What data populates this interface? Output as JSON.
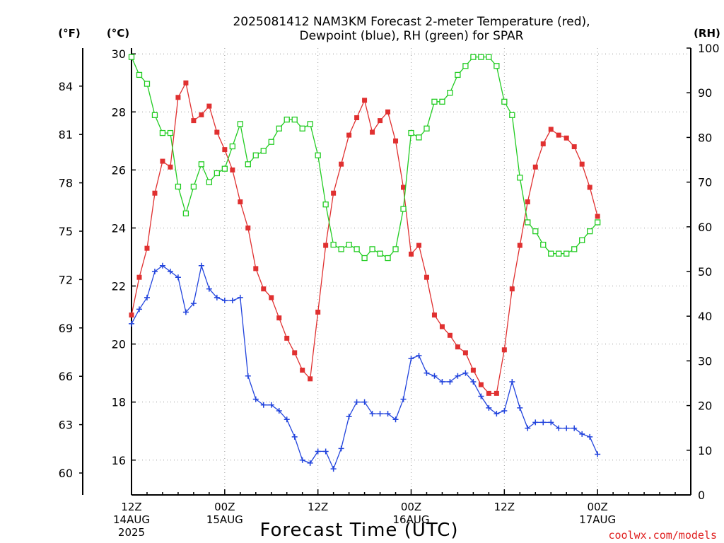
{
  "chart_data": {
    "type": "line",
    "title_line1": "2025081412 NAM3KM Forecast 2-meter Temperature (red),",
    "title_line2": "Dewpoint (blue), RH (green) for SPAR",
    "xlabel": "Forecast Time (UTC)",
    "credit": "coolwx.com/models",
    "units": {
      "fahrenheit": "(°F)",
      "celsius": "(°C)",
      "rh": "(RH)"
    },
    "x_unit": "forecast hour from 2025-08-14 12Z",
    "xlim": [
      0,
      36
    ],
    "x_ticks": [
      {
        "x": 0,
        "lines": [
          "12Z",
          "14AUG",
          "2025"
        ]
      },
      {
        "x": 6,
        "lines": [
          "00Z",
          "15AUG"
        ]
      },
      {
        "x": 12,
        "lines": [
          "12Z"
        ]
      },
      {
        "x": 18,
        "lines": [
          "00Z",
          "16AUG"
        ]
      },
      {
        "x": 24,
        "lines": [
          "12Z"
        ]
      },
      {
        "x": 30,
        "lines": [
          "00Z",
          "17AUG"
        ]
      }
    ],
    "ylim_celsius": [
      14.8,
      30.2
    ],
    "y_ticks_celsius": [
      "16",
      "18",
      "20",
      "22",
      "24",
      "26",
      "28",
      "30"
    ],
    "y_ticks_fahrenheit": [
      "60",
      "63",
      "66",
      "69",
      "72",
      "75",
      "78",
      "81",
      "84"
    ],
    "ylim_rh": [
      0,
      100
    ],
    "y_ticks_rh": [
      "0",
      "10",
      "20",
      "30",
      "40",
      "50",
      "60",
      "70",
      "80",
      "90",
      "100"
    ],
    "grid": true,
    "colors": {
      "temperature": "#e03030",
      "dewpoint": "#2244dd",
      "rh": "#22cc22",
      "grid": "#999999",
      "credit": "#e02020"
    },
    "series": [
      {
        "name": "Temperature",
        "axis": "celsius",
        "marker": "filled-square",
        "x": [
          0,
          0.5,
          1,
          1.5,
          2,
          2.5,
          3,
          3.5,
          4,
          4.5,
          5,
          5.5,
          6,
          6.5,
          7,
          7.5,
          8,
          8.5,
          9,
          9.5,
          10,
          10.5,
          11,
          11.5,
          12,
          12.5,
          13,
          13.5,
          14,
          14.5,
          15,
          15.5,
          16,
          16.5,
          17,
          17.5,
          18,
          18.5,
          19,
          19.5,
          20,
          20.5,
          21,
          21.5,
          22,
          22.5,
          23,
          23.5,
          24,
          24.5,
          25,
          25.5,
          26,
          26.5,
          27,
          27.5,
          28,
          28.5,
          29,
          29.5,
          30
        ],
        "y": [
          21.0,
          22.3,
          23.3,
          25.2,
          26.3,
          26.1,
          28.5,
          29.0,
          27.7,
          27.9,
          28.2,
          27.3,
          26.7,
          26.0,
          24.9,
          24.0,
          22.6,
          21.9,
          21.6,
          20.9,
          20.2,
          19.7,
          19.1,
          18.8,
          21.1,
          23.4,
          25.2,
          26.2,
          27.2,
          27.8,
          28.4,
          27.3,
          27.7,
          28.0,
          27.0,
          25.4,
          23.1,
          23.4,
          22.3,
          21.0,
          20.6,
          20.3,
          19.9,
          19.7,
          19.1,
          18.6,
          18.3,
          18.3,
          19.8,
          21.9,
          23.4,
          24.9,
          26.1,
          26.9,
          27.4,
          27.2,
          27.1,
          26.8,
          26.2,
          25.4,
          24.4
        ]
      },
      {
        "name": "Dewpoint",
        "axis": "celsius",
        "marker": "plus",
        "x": [
          0,
          0.5,
          1,
          1.5,
          2,
          2.5,
          3,
          3.5,
          4,
          4.5,
          5,
          5.5,
          6,
          6.5,
          7,
          7.5,
          8,
          8.5,
          9,
          9.5,
          10,
          10.5,
          11,
          11.5,
          12,
          12.5,
          13,
          13.5,
          14,
          14.5,
          15,
          15.5,
          16,
          16.5,
          17,
          17.5,
          18,
          18.5,
          19,
          19.5,
          20,
          20.5,
          21,
          21.5,
          22,
          22.5,
          23,
          23.5,
          24,
          24.5,
          25,
          25.5,
          26,
          26.5,
          27,
          27.5,
          28,
          28.5,
          29,
          29.5,
          30
        ],
        "y": [
          20.7,
          21.2,
          21.6,
          22.5,
          22.7,
          22.5,
          22.3,
          21.1,
          21.4,
          22.7,
          21.9,
          21.6,
          21.5,
          21.5,
          21.6,
          18.9,
          18.1,
          17.9,
          17.9,
          17.7,
          17.4,
          16.8,
          16.0,
          15.9,
          16.3,
          16.3,
          15.7,
          16.4,
          17.5,
          18.0,
          18.0,
          17.6,
          17.6,
          17.6,
          17.4,
          18.1,
          19.5,
          19.6,
          19.0,
          18.9,
          18.7,
          18.7,
          18.9,
          19.0,
          18.7,
          18.2,
          17.8,
          17.6,
          17.7,
          18.7,
          17.8,
          17.1,
          17.3,
          17.3,
          17.3,
          17.1,
          17.1,
          17.1,
          16.9,
          16.8,
          16.2
        ]
      },
      {
        "name": "RH",
        "axis": "rh",
        "marker": "open-square",
        "x": [
          0,
          0.5,
          1,
          1.5,
          2,
          2.5,
          3,
          3.5,
          4,
          4.5,
          5,
          5.5,
          6,
          6.5,
          7,
          7.5,
          8,
          8.5,
          9,
          9.5,
          10,
          10.5,
          11,
          11.5,
          12,
          12.5,
          13,
          13.5,
          14,
          14.5,
          15,
          15.5,
          16,
          16.5,
          17,
          17.5,
          18,
          18.5,
          19,
          19.5,
          20,
          20.5,
          21,
          21.5,
          22,
          22.5,
          23,
          23.5,
          24,
          24.5,
          25,
          25.5,
          26,
          26.5,
          27,
          27.5,
          28,
          28.5,
          29,
          29.5,
          30
        ],
        "y": [
          98,
          94,
          92,
          85,
          81,
          81,
          69,
          63,
          69,
          74,
          70,
          72,
          73,
          78,
          83,
          74,
          76,
          77,
          79,
          82,
          84,
          84,
          82,
          83,
          76,
          65,
          56,
          55,
          56,
          55,
          53,
          55,
          54,
          53,
          55,
          64,
          81,
          80,
          82,
          88,
          88,
          90,
          94,
          96,
          98,
          98,
          98,
          96,
          88,
          85,
          71,
          61,
          59,
          56,
          54,
          54,
          54,
          55,
          57,
          59,
          61
        ]
      }
    ]
  }
}
